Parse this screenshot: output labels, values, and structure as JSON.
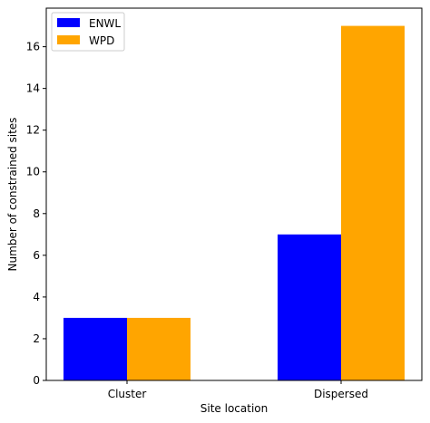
{
  "chart_data": {
    "type": "bar",
    "title": "",
    "xlabel": "Site location",
    "ylabel": "Number of constrained sites",
    "categories": [
      "Cluster",
      "Dispersed"
    ],
    "series": [
      {
        "name": "ENWL",
        "values": [
          3,
          7
        ],
        "color": "#0000ff"
      },
      {
        "name": "WPD",
        "values": [
          3,
          17
        ],
        "color": "#ffa500"
      }
    ],
    "ylim": [
      0,
      17.85
    ],
    "yticks": [
      0,
      2,
      4,
      6,
      8,
      10,
      12,
      14,
      16
    ],
    "grid": false,
    "legend_position": "top-left"
  }
}
